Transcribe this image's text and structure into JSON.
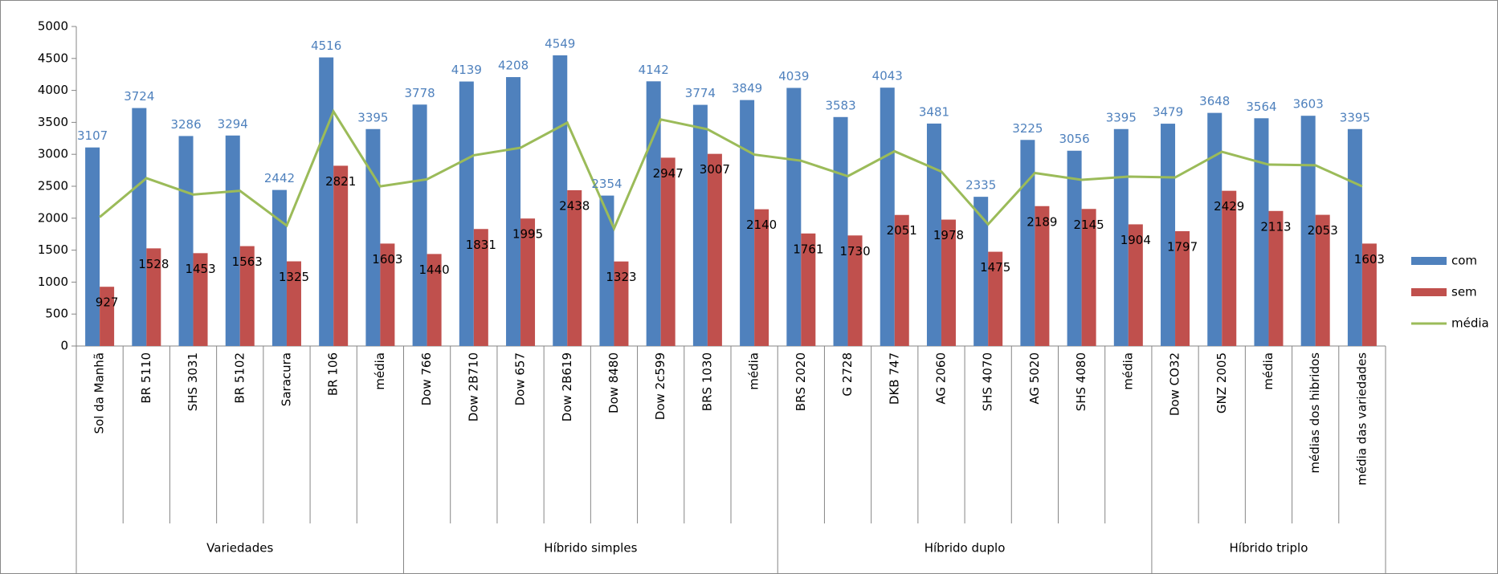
{
  "chart_data": {
    "type": "bar",
    "category_groups": [
      {
        "name": "Variedades",
        "categories": [
          "Sol da Manhã",
          "BR 5110",
          "SHS 3031",
          "BR 5102",
          "Saracura",
          "BR 106",
          "média"
        ]
      },
      {
        "name": "Híbrido simples",
        "categories": [
          "Dow 766",
          "Dow 2B710",
          "Dow 657",
          "Dow 2B619",
          "Dow 8480",
          "Dow 2c599",
          "BRS 1030",
          "média"
        ]
      },
      {
        "name": "Híbrido duplo",
        "categories": [
          "BRS 2020",
          "G 2728",
          "DKB 747",
          "AG 2060",
          "SHS 4070",
          "AG 5020",
          "SHS 4080",
          "média"
        ]
      },
      {
        "name": "Híbrido triplo",
        "categories": [
          "Dow CO32",
          "GNZ 2005",
          "média",
          "médias dos hibridos",
          "média das variedades"
        ]
      }
    ],
    "series": [
      {
        "name": "com",
        "type": "bar",
        "color": "#4f81bd",
        "label_color": "#4f81bd",
        "values": [
          3107,
          3724,
          3286,
          3294,
          2442,
          4516,
          3395,
          3778,
          4139,
          4208,
          4549,
          2354,
          4142,
          3774,
          3849,
          4039,
          3583,
          4043,
          3481,
          2335,
          3225,
          3056,
          3395,
          3479,
          3648,
          3564,
          3603,
          3395
        ]
      },
      {
        "name": "sem",
        "type": "bar",
        "color": "#c0504d",
        "label_color": "#000000",
        "values": [
          927,
          1528,
          1453,
          1563,
          1325,
          2821,
          1603,
          1440,
          1831,
          1995,
          2438,
          1323,
          2947,
          3007,
          2140,
          1761,
          1730,
          2051,
          1978,
          1475,
          2189,
          2145,
          1904,
          1797,
          2429,
          2113,
          2053,
          1603
        ]
      },
      {
        "name": "média",
        "type": "line",
        "color": "#9bbb59",
        "values": [
          2017,
          2626,
          2370,
          2429,
          1884,
          3669,
          2499,
          2609,
          2985,
          3102,
          3494,
          1839,
          3545,
          3391,
          2995,
          2900,
          2657,
          3047,
          2730,
          1905,
          2707,
          2601,
          2650,
          2638,
          3039,
          2839,
          2828,
          2499
        ]
      }
    ],
    "ylim": [
      0,
      5000
    ],
    "yticks": [
      0,
      500,
      1000,
      1500,
      2000,
      2500,
      3000,
      3500,
      4000,
      4500,
      5000
    ],
    "grid": false,
    "legend": "right"
  }
}
